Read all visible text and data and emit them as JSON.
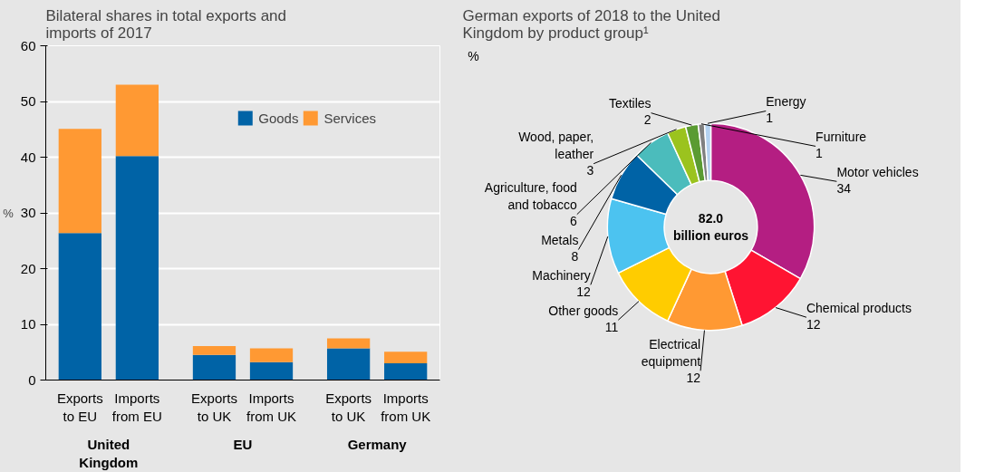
{
  "chart_data": [
    {
      "type": "bar",
      "title": "Bilateral shares in total exports and imports of 2017",
      "ylabel": "%",
      "stacked": true,
      "categories": [
        "Exports to EU",
        "Imports from EU",
        "Exports to UK",
        "Imports from UK",
        "Exports to UK",
        "Imports from UK"
      ],
      "annotations": [
        "United Kingdom",
        "EU",
        "Germany"
      ],
      "series": [
        {
          "name": "Goods",
          "color": "#0063a6",
          "values": [
            26.4,
            40.2,
            4.5,
            3.2,
            5.7,
            3.0
          ]
        },
        {
          "name": "Services",
          "color": "#ff9933",
          "values": [
            18.7,
            12.8,
            1.6,
            2.5,
            1.8,
            2.1
          ]
        }
      ],
      "ylim": [
        0,
        60
      ],
      "yticks": [
        0,
        10,
        20,
        30,
        40,
        50,
        60
      ],
      "grid": "y",
      "legend": "top right"
    },
    {
      "type": "donut",
      "title": "German exports of 2018 to the United Kingdom by product group¹",
      "ylabel": "%",
      "categories": [
        "Motor vehicles",
        "Chemical products",
        "Electrical equipment",
        "Other goods",
        "Machinery",
        "Metals",
        "Agriculture, food and tobacco",
        "Wood, paper, leather",
        "Textiles",
        "Furniture",
        "Energy"
      ],
      "values": [
        34,
        12,
        12,
        11,
        12,
        8,
        6,
        3,
        2,
        1,
        1
      ],
      "colors": [
        "#b41e82",
        "#ff1432",
        "#ff9933",
        "#ffcc00",
        "#4cc3f0",
        "#0063a6",
        "#4bbcbc",
        "#9bc31e",
        "#5a9b32",
        "#808080",
        "#b4d2f0"
      ],
      "data_labels": true,
      "annotations": [
        "82.0 billion euros"
      ]
    }
  ]
}
